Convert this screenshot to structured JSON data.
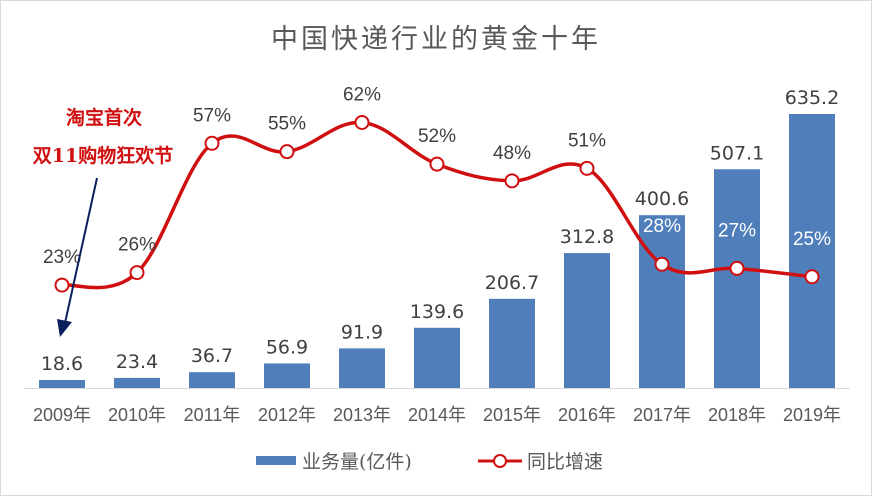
{
  "chart_data": {
    "type": "bar+line",
    "title": "中国快递行业的黄金十年",
    "categories": [
      "2009年",
      "2010年",
      "2011年",
      "2012年",
      "2013年",
      "2014年",
      "2015年",
      "2016年",
      "2017年",
      "2018年",
      "2019年"
    ],
    "series": [
      {
        "name": "业务量(亿件)",
        "type": "bar",
        "color": "#4F7EBB",
        "values": [
          18.6,
          23.4,
          36.7,
          56.9,
          91.9,
          139.6,
          206.7,
          312.8,
          400.6,
          507.1,
          635.2
        ],
        "labels": [
          "18.6",
          "23.4",
          "36.7",
          "56.9",
          "91.9",
          "139.6",
          "206.7",
          "312.8",
          "400.6",
          "507.1",
          "635.2"
        ]
      },
      {
        "name": "同比增速",
        "type": "line",
        "color": "#D01010",
        "smooth": true,
        "marker": "circle-hollow",
        "values": [
          23,
          26,
          57,
          55,
          62,
          52,
          48,
          51,
          28,
          27,
          25
        ],
        "labels": [
          "23%",
          "26%",
          "57%",
          "55%",
          "62%",
          "52%",
          "48%",
          "51%",
          "28%",
          "27%",
          "25%"
        ]
      }
    ],
    "xlabel": "",
    "ylabel": "",
    "grid": false,
    "legend_position": "bottom",
    "annotations": [
      {
        "text_lines": [
          "淘宝首次",
          "双11购物狂欢节"
        ],
        "color": "#D01010",
        "points_to": "2009年"
      }
    ]
  }
}
